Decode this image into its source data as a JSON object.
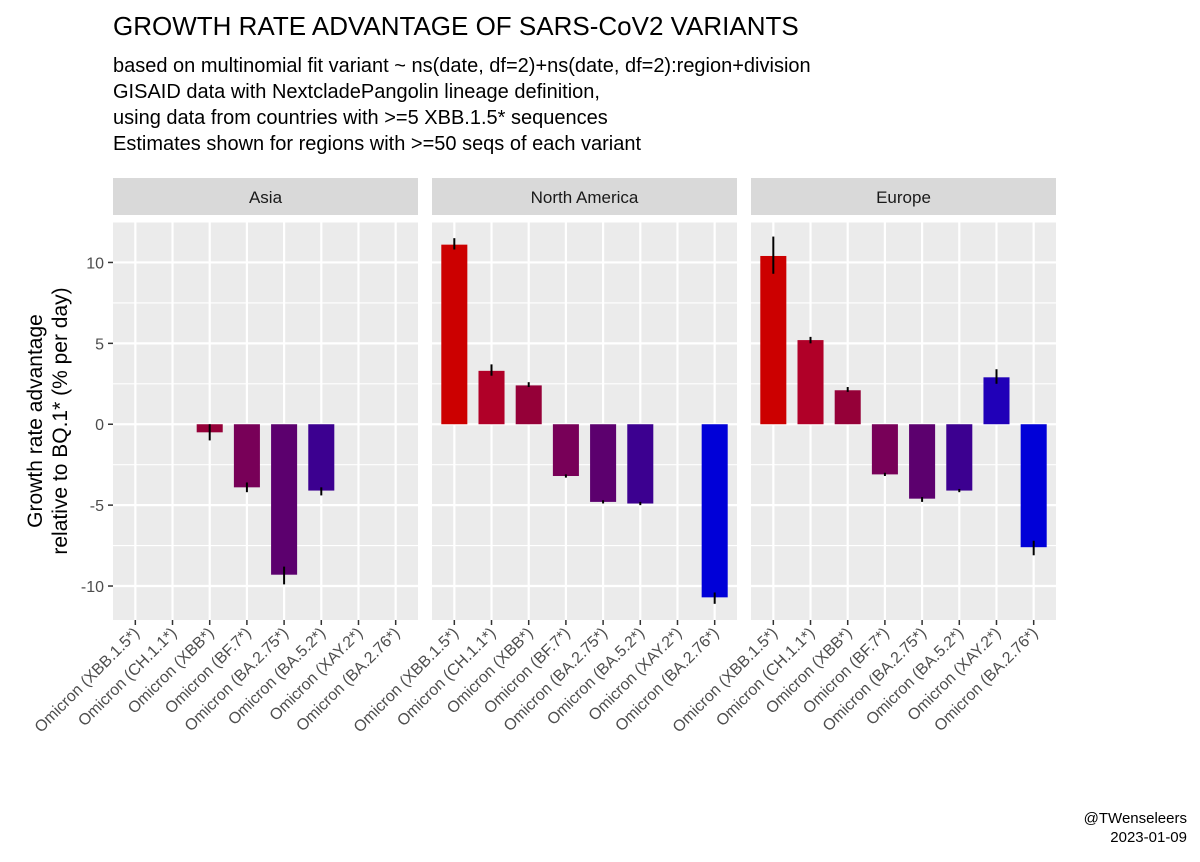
{
  "chart_data": {
    "type": "bar",
    "title": "GROWTH RATE ADVANTAGE OF SARS-CoV2 VARIANTS",
    "subtitle": [
      "based on multinomial fit variant ~ ns(date, df=2)+ns(date, df=2):region+division",
      "GISAID data with NextcladePangolin lineage definition,",
      "using data from countries with >=5 XBB.1.5* sequences",
      "Estimates shown for regions with >=50 seqs of each variant"
    ],
    "ylabel": [
      "Growth rate advantage",
      "relative to BQ.1* (% per day)"
    ],
    "xlabel": "",
    "ylim": [
      -12.1,
      12.5
    ],
    "yticks": [
      -10,
      -5,
      0,
      5,
      10
    ],
    "grid": true,
    "categories": [
      "Omicron (XBB.1.5*)",
      "Omicron (CH.1.1*)",
      "Omicron (XBB*)",
      "Omicron (BF.7*)",
      "Omicron (BA.2.75*)",
      "Omicron (BA.5.2*)",
      "Omicron (XAY.2*)",
      "Omicron (BA.2.76*)"
    ],
    "colors": [
      "#cc0000",
      "#b00028",
      "#950038",
      "#780058",
      "#5c006e",
      "#3c0090",
      "#2000b8",
      "#0000d8"
    ],
    "panels": [
      {
        "name": "Asia",
        "values": [
          null,
          null,
          -0.5,
          -3.9,
          -9.3,
          -4.1,
          null,
          null
        ],
        "lower": [
          null,
          null,
          -1.0,
          -4.2,
          -9.9,
          -4.4,
          null,
          null
        ],
        "upper": [
          null,
          null,
          0.0,
          -3.6,
          -8.8,
          -3.9,
          null,
          null
        ]
      },
      {
        "name": "North America",
        "values": [
          11.1,
          3.3,
          2.4,
          -3.2,
          -4.8,
          -4.9,
          null,
          -10.7
        ],
        "lower": [
          10.8,
          3.0,
          2.3,
          -3.3,
          -4.9,
          -5.0,
          null,
          -11.1
        ],
        "upper": [
          11.5,
          3.7,
          2.6,
          -3.1,
          -4.7,
          -4.8,
          null,
          -10.4
        ]
      },
      {
        "name": "Europe",
        "values": [
          10.4,
          5.2,
          2.1,
          -3.1,
          -4.6,
          -4.1,
          2.9,
          -7.6
        ],
        "lower": [
          9.3,
          5.0,
          2.0,
          -3.2,
          -4.8,
          -4.2,
          2.5,
          -8.1
        ],
        "upper": [
          11.6,
          5.4,
          2.3,
          -3.0,
          -4.5,
          -4.0,
          3.4,
          -7.2
        ]
      }
    ]
  },
  "caption": [
    "@TWenseleers",
    "2023-01-09"
  ]
}
